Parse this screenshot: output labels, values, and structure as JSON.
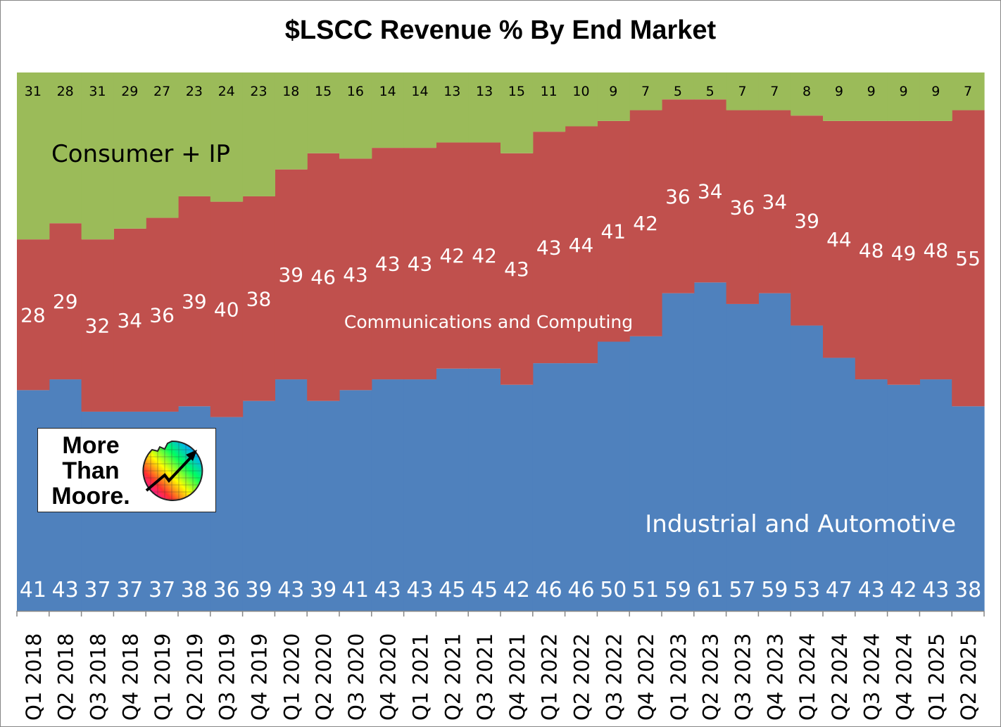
{
  "chart_data": {
    "type": "area",
    "stacked": true,
    "percent": true,
    "title": "$LSCC Revenue % By End Market",
    "categories": [
      "Q1 2018",
      "Q2 2018",
      "Q3 2018",
      "Q4 2018",
      "Q1 2019",
      "Q2 2019",
      "Q3 2019",
      "Q4 2019",
      "Q1 2020",
      "Q2 2020",
      "Q3 2020",
      "Q4 2020",
      "Q1 2021",
      "Q2 2021",
      "Q3 2021",
      "Q4 2021",
      "Q1 2022",
      "Q2 2022",
      "Q3 2022",
      "Q4 2022",
      "Q1 2023",
      "Q2 2023",
      "Q3 2023",
      "Q4 2023",
      "Q1 2024",
      "Q2 2024",
      "Q3 2024",
      "Q4 2024",
      "Q1 2025",
      "Q2 2025"
    ],
    "ylim": [
      0,
      100
    ],
    "xlabel": "",
    "ylabel": "",
    "series": [
      {
        "name": "Industrial and Automotive",
        "color": "#4F81BD",
        "values": [
          41,
          43,
          37,
          37,
          37,
          38,
          36,
          39,
          43,
          39,
          41,
          43,
          43,
          45,
          45,
          42,
          46,
          46,
          50,
          51,
          59,
          61,
          57,
          59,
          53,
          47,
          43,
          42,
          43,
          38
        ]
      },
      {
        "name": "Communications and Computing",
        "color": "#C0504D",
        "values": [
          28,
          29,
          32,
          34,
          36,
          39,
          40,
          38,
          39,
          46,
          43,
          43,
          43,
          42,
          42,
          43,
          43,
          44,
          41,
          42,
          36,
          34,
          36,
          34,
          39,
          44,
          48,
          49,
          48,
          55
        ]
      },
      {
        "name": "Consumer + IP",
        "color": "#9BBB59",
        "values": [
          31,
          28,
          31,
          29,
          27,
          23,
          24,
          23,
          18,
          15,
          16,
          14,
          14,
          13,
          13,
          15,
          11,
          10,
          9,
          7,
          5,
          5,
          7,
          7,
          8,
          9,
          9,
          9,
          9,
          7
        ]
      }
    ]
  },
  "logo": {
    "lines": [
      "More",
      "Than",
      "Moore."
    ]
  }
}
